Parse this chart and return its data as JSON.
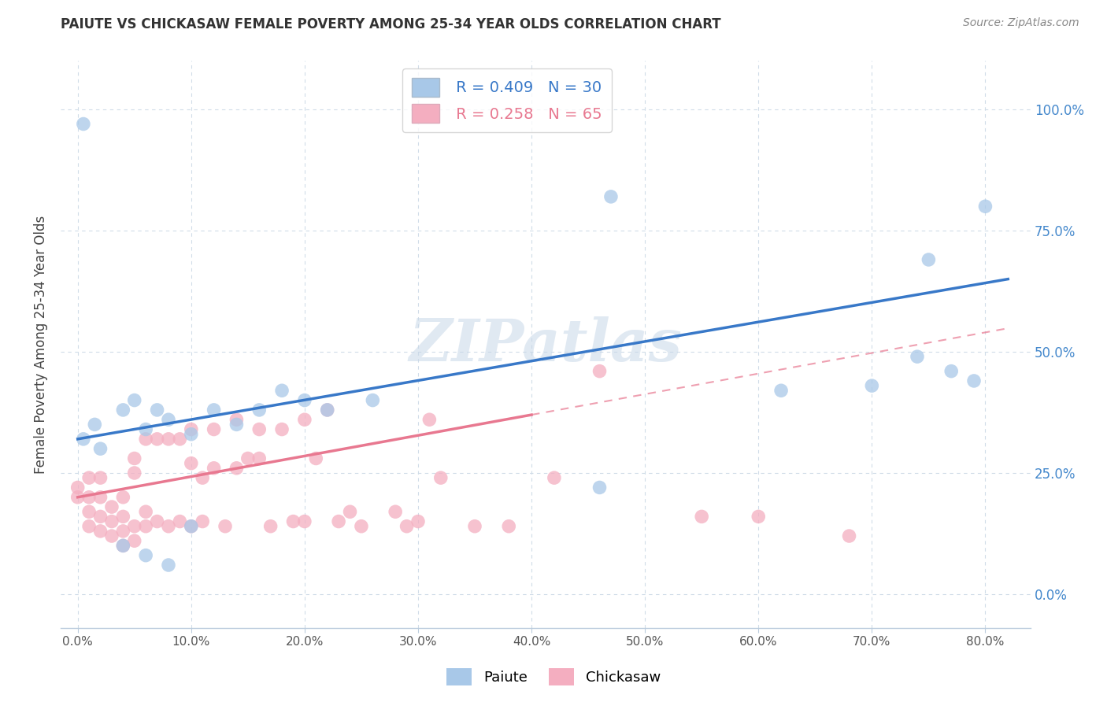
{
  "title": "PAIUTE VS CHICKASAW FEMALE POVERTY AMONG 25-34 YEAR OLDS CORRELATION CHART",
  "source": "Source: ZipAtlas.com",
  "xlabel_ticks": [
    "0.0%",
    "10.0%",
    "20.0%",
    "30.0%",
    "40.0%",
    "50.0%",
    "60.0%",
    "70.0%",
    "80.0%"
  ],
  "xlabel_vals": [
    0.0,
    0.1,
    0.2,
    0.3,
    0.4,
    0.5,
    0.6,
    0.7,
    0.8
  ],
  "ylabel": "Female Poverty Among 25-34 Year Olds",
  "ylabel_ticks": [
    "0.0%",
    "25.0%",
    "50.0%",
    "75.0%",
    "100.0%"
  ],
  "ylabel_vals": [
    0.0,
    0.25,
    0.5,
    0.75,
    1.0
  ],
  "xlim": [
    -0.015,
    0.84
  ],
  "ylim": [
    -0.07,
    1.1
  ],
  "paiute_R": 0.409,
  "paiute_N": 30,
  "chickasaw_R": 0.258,
  "chickasaw_N": 65,
  "paiute_color": "#a8c8e8",
  "chickasaw_color": "#f4aec0",
  "paiute_line_color": "#3878c8",
  "chickasaw_line_color": "#e87890",
  "watermark_color": "#c8d8e8",
  "background_color": "#ffffff",
  "grid_color": "#d0dce8",
  "paiute_x": [
    0.005,
    0.015,
    0.02,
    0.04,
    0.05,
    0.06,
    0.07,
    0.08,
    0.1,
    0.12,
    0.14,
    0.16,
    0.18,
    0.2,
    0.22,
    0.26,
    0.46,
    0.47,
    0.62,
    0.7,
    0.74,
    0.75,
    0.77,
    0.79,
    0.8,
    0.04,
    0.06,
    0.08,
    0.1,
    0.005
  ],
  "paiute_y": [
    0.32,
    0.35,
    0.3,
    0.38,
    0.4,
    0.34,
    0.38,
    0.36,
    0.33,
    0.38,
    0.35,
    0.38,
    0.42,
    0.4,
    0.38,
    0.4,
    0.22,
    0.82,
    0.42,
    0.43,
    0.49,
    0.69,
    0.46,
    0.44,
    0.8,
    0.1,
    0.08,
    0.06,
    0.14,
    0.97
  ],
  "chickasaw_x": [
    0.0,
    0.0,
    0.01,
    0.01,
    0.01,
    0.01,
    0.02,
    0.02,
    0.02,
    0.02,
    0.03,
    0.03,
    0.03,
    0.04,
    0.04,
    0.04,
    0.04,
    0.05,
    0.05,
    0.05,
    0.05,
    0.06,
    0.06,
    0.06,
    0.07,
    0.07,
    0.08,
    0.08,
    0.09,
    0.09,
    0.1,
    0.1,
    0.1,
    0.11,
    0.11,
    0.12,
    0.12,
    0.13,
    0.14,
    0.14,
    0.15,
    0.16,
    0.16,
    0.17,
    0.18,
    0.19,
    0.2,
    0.2,
    0.21,
    0.22,
    0.23,
    0.24,
    0.25,
    0.28,
    0.29,
    0.3,
    0.31,
    0.32,
    0.35,
    0.38,
    0.42,
    0.46,
    0.55,
    0.6,
    0.68
  ],
  "chickasaw_y": [
    0.2,
    0.22,
    0.14,
    0.17,
    0.2,
    0.24,
    0.13,
    0.16,
    0.2,
    0.24,
    0.12,
    0.15,
    0.18,
    0.1,
    0.13,
    0.16,
    0.2,
    0.11,
    0.14,
    0.25,
    0.28,
    0.14,
    0.17,
    0.32,
    0.15,
    0.32,
    0.14,
    0.32,
    0.15,
    0.32,
    0.14,
    0.27,
    0.34,
    0.15,
    0.24,
    0.26,
    0.34,
    0.14,
    0.26,
    0.36,
    0.28,
    0.28,
    0.34,
    0.14,
    0.34,
    0.15,
    0.15,
    0.36,
    0.28,
    0.38,
    0.15,
    0.17,
    0.14,
    0.17,
    0.14,
    0.15,
    0.36,
    0.24,
    0.14,
    0.14,
    0.24,
    0.46,
    0.16,
    0.16,
    0.12
  ],
  "paiute_trend_x0": 0.0,
  "paiute_trend_y0": 0.32,
  "paiute_trend_x1": 0.82,
  "paiute_trend_y1": 0.65,
  "chickasaw_trend_x0": 0.0,
  "chickasaw_trend_y0": 0.2,
  "chickasaw_trend_x1": 0.4,
  "chickasaw_trend_y1": 0.37
}
